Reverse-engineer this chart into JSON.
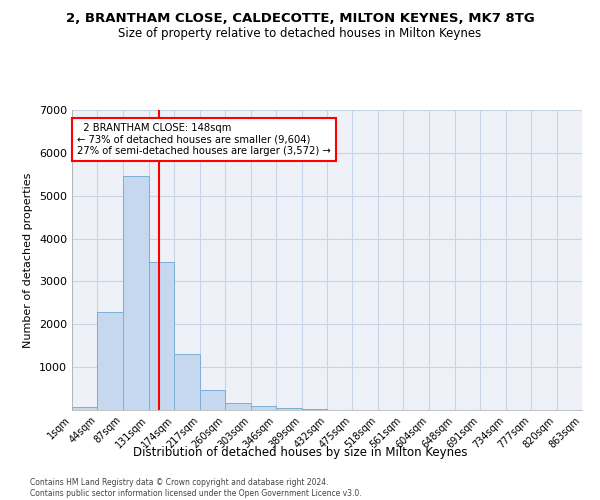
{
  "title_line1": "2, BRANTHAM CLOSE, CALDECOTTE, MILTON KEYNES, MK7 8TG",
  "title_line2": "Size of property relative to detached houses in Milton Keynes",
  "xlabel": "Distribution of detached houses by size in Milton Keynes",
  "ylabel": "Number of detached properties",
  "annotation_line1": "  2 BRANTHAM CLOSE: 148sqm  ",
  "annotation_line2": "← 73% of detached houses are smaller (9,604)",
  "annotation_line3": "27% of semi-detached houses are larger (3,572) →",
  "footer_line1": "Contains HM Land Registry data © Crown copyright and database right 2024.",
  "footer_line2": "Contains public sector information licensed under the Open Government Licence v3.0.",
  "bar_color": "#c5d8f0",
  "bar_edge_color": "#7aafd4",
  "grid_color": "#c8d4e8",
  "annotation_box_edge_color": "red",
  "property_line_color": "red",
  "property_value": 148,
  "bin_edges": [
    1,
    44,
    87,
    131,
    174,
    217,
    260,
    303,
    346,
    389,
    432,
    475,
    518,
    561,
    604,
    648,
    691,
    734,
    777,
    820,
    863
  ],
  "bin_labels": [
    "1sqm",
    "44sqm",
    "87sqm",
    "131sqm",
    "174sqm",
    "217sqm",
    "260sqm",
    "303sqm",
    "346sqm",
    "389sqm",
    "432sqm",
    "475sqm",
    "518sqm",
    "561sqm",
    "604sqm",
    "648sqm",
    "691sqm",
    "734sqm",
    "777sqm",
    "820sqm",
    "863sqm"
  ],
  "counts": [
    75,
    2280,
    5470,
    3450,
    1310,
    460,
    165,
    90,
    55,
    35,
    10,
    0,
    0,
    0,
    0,
    0,
    0,
    0,
    0,
    0
  ],
  "ylim": [
    0,
    7000
  ],
  "yticks": [
    0,
    1000,
    2000,
    3000,
    4000,
    5000,
    6000,
    7000
  ],
  "background_color": "#eef2f8",
  "fig_background": "#ffffff"
}
